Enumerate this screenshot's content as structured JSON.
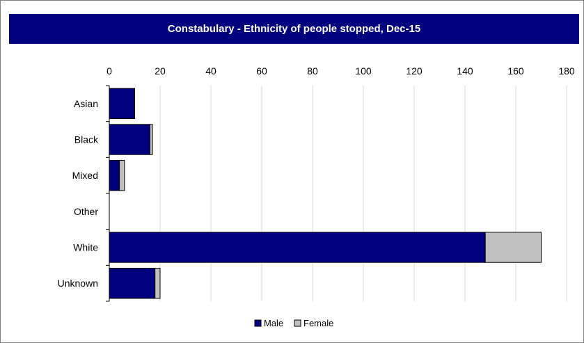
{
  "chart_data": {
    "type": "bar",
    "orientation": "horizontal",
    "stacked": true,
    "title": "Constabulary - Ethnicity of people stopped, Dec-15",
    "categories": [
      "Asian",
      "Black",
      "Mixed",
      "Other",
      "White",
      "Unknown"
    ],
    "series": [
      {
        "name": "Male",
        "values": [
          10,
          16,
          4,
          0,
          148,
          18
        ],
        "color": "#00007f"
      },
      {
        "name": "Female",
        "values": [
          0,
          1,
          2,
          0,
          22,
          2
        ],
        "color": "#c0c0c0"
      }
    ],
    "xlim": [
      0,
      180
    ],
    "xticks": [
      0,
      20,
      40,
      60,
      80,
      100,
      120,
      140,
      160,
      180
    ],
    "x_axis_position": "top",
    "grid": true,
    "legend_position": "bottom"
  }
}
